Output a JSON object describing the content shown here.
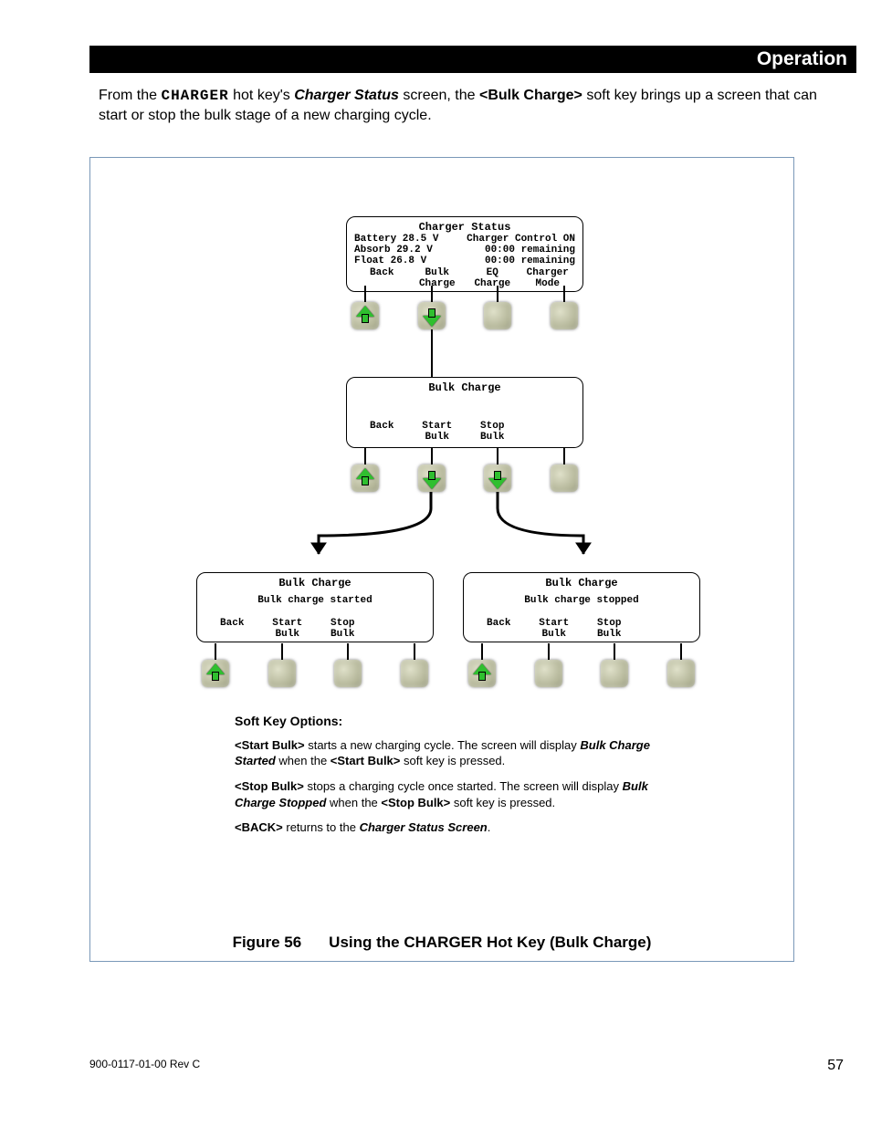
{
  "header": {
    "title": "Operation"
  },
  "intro": {
    "pre": "From the ",
    "hotkey": "CHARGER",
    "mid1": " hot key's ",
    "status_screen": "Charger Status",
    "mid2": " screen, the ",
    "softkey": "<Bulk Charge>",
    "post": " soft key brings up a screen that can start or stop the bulk stage of a new charging cycle."
  },
  "lcd_status": {
    "title": "Charger Status",
    "left": [
      "Battery 28.5 V",
      "Absorb  29.2 V",
      "Float   26.8 V"
    ],
    "right": [
      "Charger Control  ON",
      "00:00 remaining",
      "00:00 remaining"
    ],
    "softkeys": [
      "Back",
      "Bulk\nCharge",
      "EQ\nCharge",
      "Charger\nMode"
    ]
  },
  "lcd_bulk": {
    "title": "Bulk Charge",
    "softkeys": [
      "Back",
      "Start\nBulk",
      "Stop\nBulk",
      ""
    ]
  },
  "lcd_started": {
    "title": "Bulk Charge",
    "msg": "Bulk charge started",
    "softkeys": [
      "Back",
      "Start\nBulk",
      "Stop\nBulk",
      ""
    ]
  },
  "lcd_stopped": {
    "title": "Bulk Charge",
    "msg": "Bulk charge stopped",
    "softkeys": [
      "Back",
      "Start\nBulk",
      "Stop\nBulk",
      ""
    ]
  },
  "options": {
    "heading": "Soft Key Options:",
    "p1a": "<Start Bulk>",
    "p1b": " starts a new charging cycle.  The screen will display ",
    "p1c": "Bulk Charge Started",
    "p1d": " when the ",
    "p1e": "<Start Bulk>",
    "p1f": " soft key is pressed.",
    "p2a": "<Stop Bulk>",
    "p2b": " stops a charging cycle once started.  The screen will display ",
    "p2c": "Bulk Charge Stopped",
    "p2d": " when the ",
    "p2e": "<Stop Bulk>",
    "p2f": " soft key is pressed.",
    "p3a": "<BACK>",
    "p3b": " returns to the ",
    "p3c": "Charger Status Screen",
    "p3d": "."
  },
  "caption": {
    "fig": "Figure 56",
    "text": "Using the CHARGER Hot Key (Bulk Charge)"
  },
  "footer": {
    "doc": "900-0117-01-00 Rev C",
    "page": "57"
  },
  "colors": {
    "arrow_green": "#2fbf2f",
    "btn_bg": "#c9cab0"
  }
}
